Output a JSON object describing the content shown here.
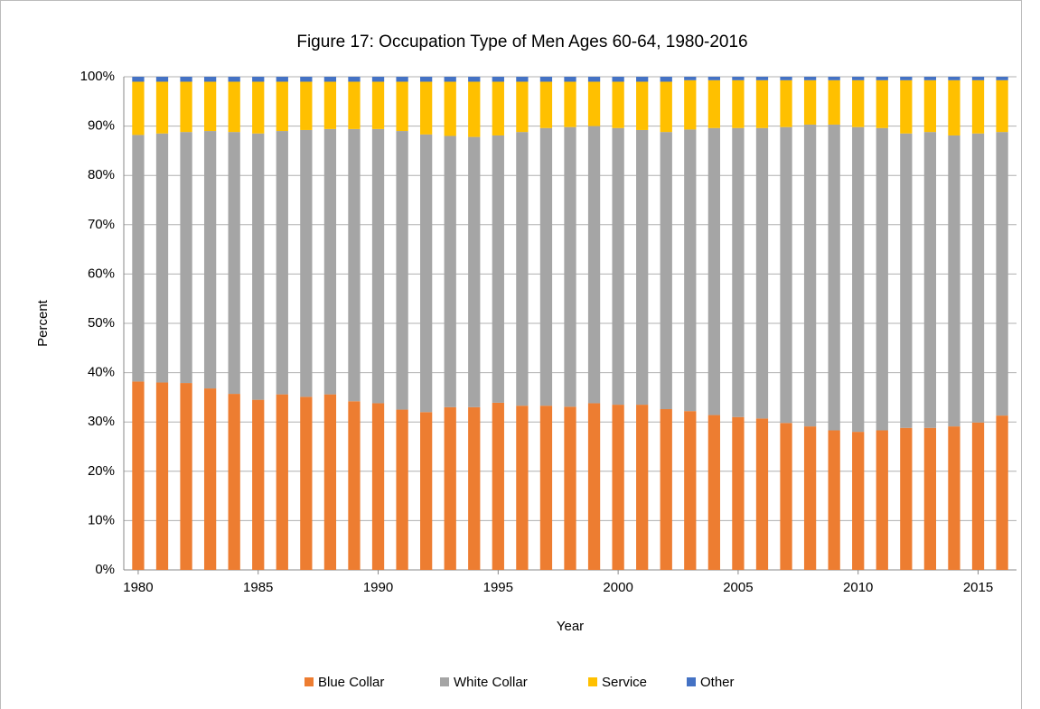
{
  "chart_data": {
    "type": "stacked_bar",
    "title": "Figure 17: Occupation Type of Men Ages 60-64, 1980-2016",
    "x_label": "Year",
    "y_label": "Percent",
    "x": [
      1980,
      1981,
      1982,
      1983,
      1984,
      1985,
      1986,
      1987,
      1988,
      1989,
      1990,
      1991,
      1992,
      1993,
      1994,
      1995,
      1996,
      1997,
      1998,
      1999,
      2000,
      2001,
      2002,
      2003,
      2004,
      2005,
      2006,
      2007,
      2008,
      2009,
      2010,
      2011,
      2012,
      2013,
      2014,
      2015,
      2016
    ],
    "xlim": [
      1979.4,
      2016.6
    ],
    "xticks": [
      1980,
      1985,
      1990,
      1995,
      2000,
      2005,
      2010,
      2015
    ],
    "ylim": [
      0,
      100
    ],
    "yticks": [
      {
        "value": 0,
        "label": "0%"
      },
      {
        "value": 10,
        "label": "10%"
      },
      {
        "value": 20,
        "label": "20%"
      },
      {
        "value": 30,
        "label": "30%"
      },
      {
        "value": 40,
        "label": "40%"
      },
      {
        "value": 50,
        "label": "50%"
      },
      {
        "value": 60,
        "label": "60%"
      },
      {
        "value": 70,
        "label": "70%"
      },
      {
        "value": 80,
        "label": "80%"
      },
      {
        "value": 90,
        "label": "90%"
      },
      {
        "value": 100,
        "label": "100%"
      }
    ],
    "grid": true,
    "legend": "bottom",
    "series": [
      {
        "name": "Blue Collar",
        "color": "#ed7d31",
        "values": [
          38.2,
          38,
          37.9,
          36.8,
          35.7,
          34.5,
          35.6,
          35.1,
          35.6,
          34.2,
          33.8,
          32.5,
          32,
          33,
          33,
          33.9,
          33.3,
          33.3,
          33.1,
          33.8,
          33.5,
          33.5,
          32.6,
          32.2,
          31.4,
          31,
          30.7,
          29.8,
          29.1,
          28.3,
          28,
          28.3,
          28.8,
          28.8,
          29.1,
          29.9,
          31.3
        ]
      },
      {
        "name": "White Collar",
        "color": "#a5a5a5",
        "values": [
          50,
          50.5,
          50.9,
          52.2,
          53.1,
          54,
          53.4,
          54.1,
          53.8,
          55.2,
          55.6,
          56.5,
          56.3,
          55,
          54.8,
          54.2,
          55.5,
          56.3,
          56.7,
          56.2,
          56.1,
          55.7,
          56.2,
          57.1,
          58.2,
          58.6,
          58.9,
          60,
          61.2,
          62,
          61.8,
          61.3,
          59.7,
          60,
          59,
          58.6,
          57.5
        ]
      },
      {
        "name": "Service",
        "color": "#ffc000",
        "values": [
          10.8,
          10.5,
          10.2,
          10,
          10.2,
          10.5,
          10,
          9.8,
          9.6,
          9.6,
          9.6,
          10,
          10.7,
          11,
          11.2,
          10.9,
          10.2,
          9.4,
          9.2,
          9,
          9.4,
          9.8,
          10.2,
          10,
          9.7,
          9.7,
          9.7,
          9.5,
          9,
          9,
          9.5,
          9.7,
          10.8,
          10.5,
          11.2,
          10.8,
          10.5
        ]
      },
      {
        "name": "Other",
        "color": "#4472c4",
        "values": [
          1,
          1,
          1,
          1,
          1,
          1,
          1,
          1,
          1,
          1,
          1,
          1,
          1,
          1,
          1,
          1,
          1,
          1,
          1,
          1,
          1,
          1,
          1,
          0.7,
          0.7,
          0.7,
          0.7,
          0.7,
          0.7,
          0.7,
          0.7,
          0.7,
          0.7,
          0.7,
          0.7,
          0.7,
          0.7
        ]
      }
    ]
  }
}
